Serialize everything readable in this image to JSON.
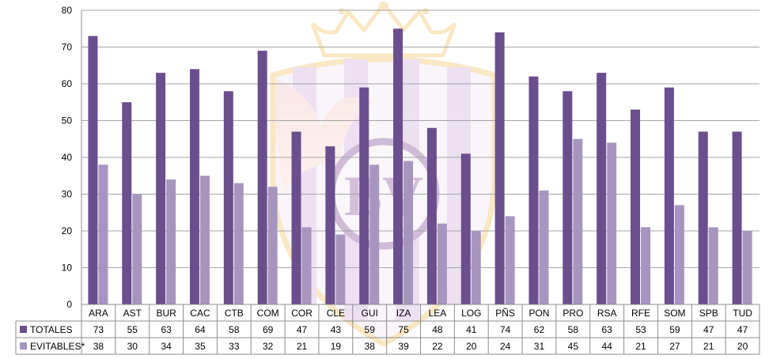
{
  "chart_data": {
    "type": "bar",
    "categories": [
      "ARA",
      "AST",
      "BUR",
      "CAC",
      "CTB",
      "COM",
      "COR",
      "CLE",
      "GUI",
      "IZA",
      "LEA",
      "LOG",
      "PÑS",
      "PON",
      "PRO",
      "RSA",
      "RFE",
      "SOM",
      "SPB",
      "TUD"
    ],
    "series": [
      {
        "name": "TOTALES",
        "color": "#6b4e8e",
        "values": [
          73,
          55,
          63,
          64,
          58,
          69,
          47,
          43,
          59,
          75,
          48,
          41,
          74,
          62,
          58,
          63,
          53,
          59,
          47,
          47
        ]
      },
      {
        "name": "EVITABLES*",
        "color": "#a696bf",
        "values": [
          38,
          30,
          34,
          35,
          33,
          32,
          21,
          19,
          38,
          39,
          22,
          20,
          24,
          31,
          45,
          44,
          21,
          27,
          21,
          20
        ]
      }
    ],
    "ylim": [
      0,
      80
    ],
    "yticks": [
      0,
      10,
      20,
      30,
      40,
      50,
      60,
      70,
      80
    ],
    "grid": true,
    "legend": "data-table-below",
    "watermark": {
      "text": "BV",
      "color": "#7a3c8c"
    }
  }
}
